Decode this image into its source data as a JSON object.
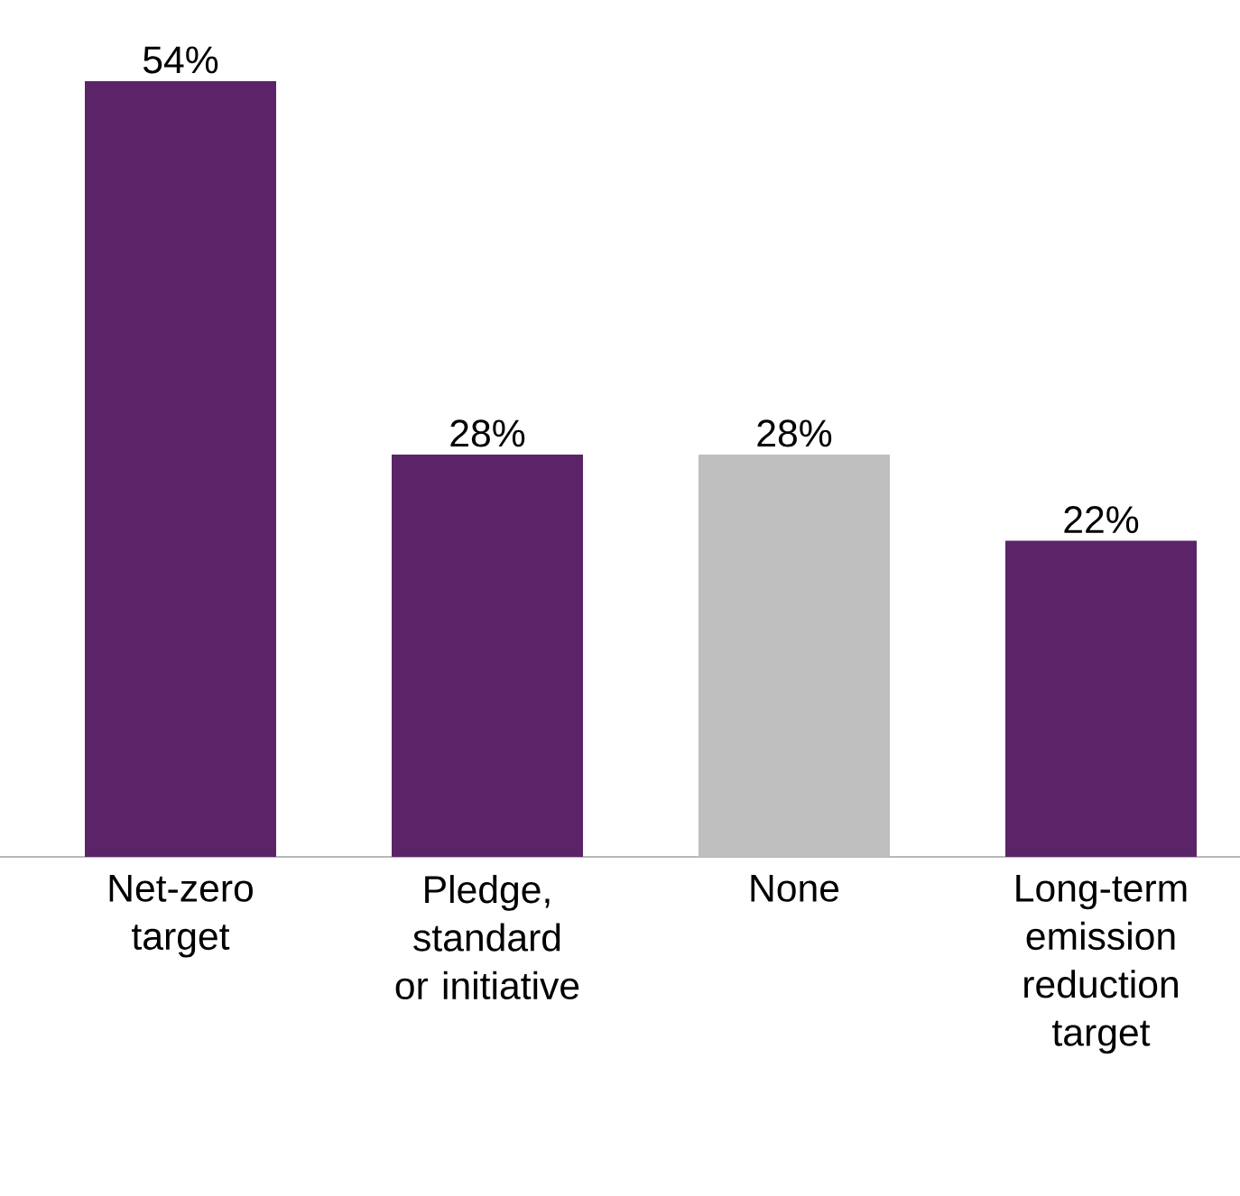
{
  "chart_data": {
    "type": "bar",
    "categories": [
      "Net-zero target",
      "Pledge, standard or initiative",
      "None",
      "Long-term emission reduction target"
    ],
    "values": [
      54,
      28,
      28,
      22
    ],
    "colors": [
      "#5c2468",
      "#5c2468",
      "#bfbfbf",
      "#5c2468"
    ],
    "value_labels": [
      "54%",
      "28%",
      "28%",
      "22%"
    ]
  }
}
